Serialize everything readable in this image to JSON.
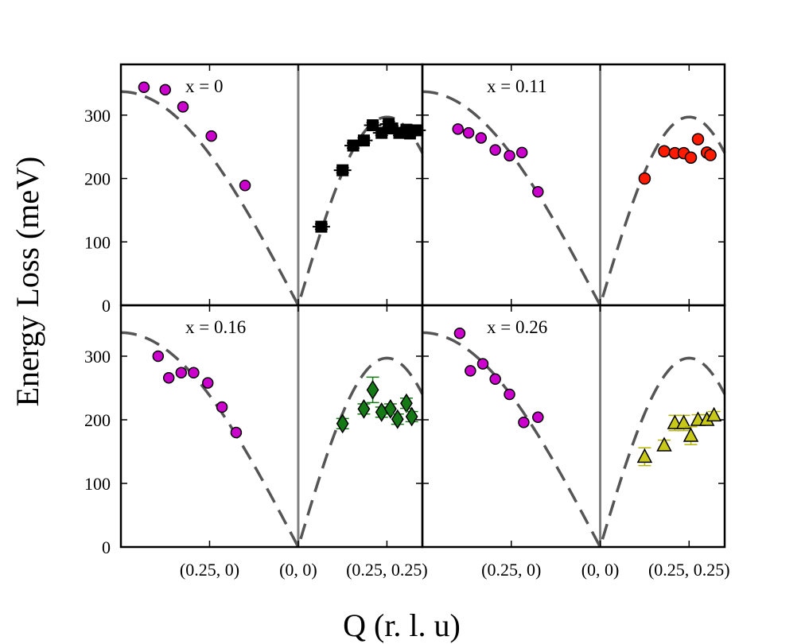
{
  "chart_data": {
    "type": "scatter",
    "ylabel": "Energy Loss (meV)",
    "xlabel": "Q (r. l. u)",
    "ylim": [
      0,
      380
    ],
    "yticks": [
      0,
      100,
      200,
      300
    ],
    "xtick_labels": [
      "(0.25, 0)",
      "(0, 0)",
      "(0.25, 0.25)"
    ],
    "xlim": [
      -1.0,
      0.7
    ],
    "dispersion": {
      "style": "dashed",
      "color": "#555555",
      "left_max": 337,
      "left_start": -1.0,
      "right_max": 297,
      "right_end": 0.707,
      "right_peak": 0.5
    },
    "colors": {
      "left_series": "#cc00cc",
      "x0": "#000000",
      "x011": "#ff1a00",
      "x016": "#157a15",
      "x026": "#c8c818"
    },
    "panels": [
      {
        "label": "x = 0",
        "left": {
          "x": [
            -0.87,
            -0.75,
            -0.65,
            -0.49,
            -0.3
          ],
          "y": [
            344,
            340,
            313,
            267,
            189
          ]
        },
        "right": {
          "marker": "square",
          "color_key": "x0",
          "x": [
            0.13,
            0.25,
            0.31,
            0.37,
            0.42,
            0.47,
            0.51,
            0.53,
            0.57,
            0.61,
            0.63,
            0.67
          ],
          "y": [
            124,
            213,
            252,
            260,
            284,
            272,
            286,
            279,
            272,
            277,
            271,
            276
          ],
          "err": [
            4,
            4,
            4,
            4,
            4,
            4,
            4,
            4,
            4,
            4,
            4,
            4
          ]
        }
      },
      {
        "label": "x = 0.11",
        "left": {
          "x": [
            -0.8,
            -0.74,
            -0.67,
            -0.59,
            -0.51,
            -0.44,
            -0.35
          ],
          "y": [
            278,
            272,
            264,
            245,
            236,
            241,
            179
          ]
        },
        "right": {
          "marker": "circle",
          "color_key": "x011",
          "x": [
            0.25,
            0.36,
            0.42,
            0.47,
            0.51,
            0.55,
            0.6,
            0.62
          ],
          "y": [
            200,
            243,
            240,
            240,
            233,
            262,
            241,
            237
          ],
          "err": [
            0,
            0,
            0,
            0,
            0,
            0,
            0,
            0
          ]
        }
      },
      {
        "label": "x = 0.16",
        "left": {
          "x": [
            -0.79,
            -0.73,
            -0.66,
            -0.59,
            -0.51,
            -0.43,
            -0.35
          ],
          "y": [
            300,
            266,
            274,
            274,
            258,
            220,
            180
          ]
        },
        "right": {
          "marker": "diamond",
          "color_key": "x016",
          "x": [
            0.25,
            0.37,
            0.42,
            0.47,
            0.52,
            0.56,
            0.61,
            0.64
          ],
          "y": [
            194,
            217,
            247,
            212,
            217,
            201,
            226,
            205
          ],
          "err": [
            8,
            8,
            20,
            8,
            8,
            8,
            8,
            8
          ]
        }
      },
      {
        "label": "x = 0.26",
        "left": {
          "x": [
            -0.79,
            -0.73,
            -0.66,
            -0.59,
            -0.51,
            -0.43,
            -0.35
          ],
          "y": [
            336,
            277,
            288,
            264,
            240,
            196,
            204
          ]
        },
        "right": {
          "marker": "triangle",
          "color_key": "x026",
          "x": [
            0.25,
            0.36,
            0.42,
            0.47,
            0.51,
            0.55,
            0.6,
            0.64
          ],
          "y": [
            142,
            160,
            195,
            195,
            175,
            200,
            200,
            207
          ],
          "err": [
            14,
            8,
            12,
            12,
            14,
            8,
            8,
            6
          ]
        }
      }
    ]
  }
}
